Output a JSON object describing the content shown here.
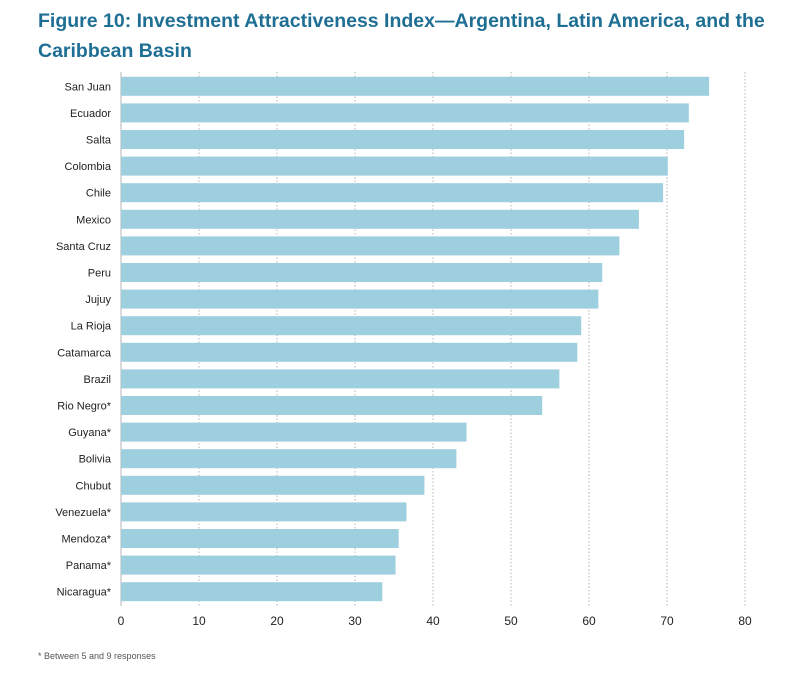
{
  "colors": {
    "title": "#1f6f95",
    "bar": "#9ecfdf",
    "grid": "#b5b5b5",
    "axis_text": "#222222"
  },
  "footnote": "* Between 5 and 9 responses",
  "chart_data": {
    "type": "bar",
    "orientation": "horizontal",
    "title": "Figure 10: Investment Attractiveness Index—Argentina, Latin America, and the Caribbean Basin",
    "xlabel": "",
    "ylabel": "",
    "xlim": [
      0,
      80
    ],
    "xticks": [
      0,
      10,
      20,
      30,
      40,
      50,
      60,
      70,
      80
    ],
    "grid": "vertical dotted",
    "categories": [
      "San Juan",
      "Ecuador",
      "Salta",
      "Colombia",
      "Chile",
      "Mexico",
      "Santa Cruz",
      "Peru",
      "Jujuy",
      "La Rioja",
      "Catamarca",
      "Brazil",
      "Rio Negro*",
      "Guyana*",
      "Bolivia",
      "Chubut",
      "Venezuela*",
      "Mendoza*",
      "Panama*",
      "Nicaragua*"
    ],
    "values": [
      75.4,
      72.8,
      72.2,
      70.1,
      69.5,
      66.4,
      63.9,
      61.7,
      61.2,
      59.0,
      58.5,
      56.2,
      54.0,
      44.3,
      43.0,
      38.9,
      36.6,
      35.6,
      35.2,
      33.5
    ]
  }
}
